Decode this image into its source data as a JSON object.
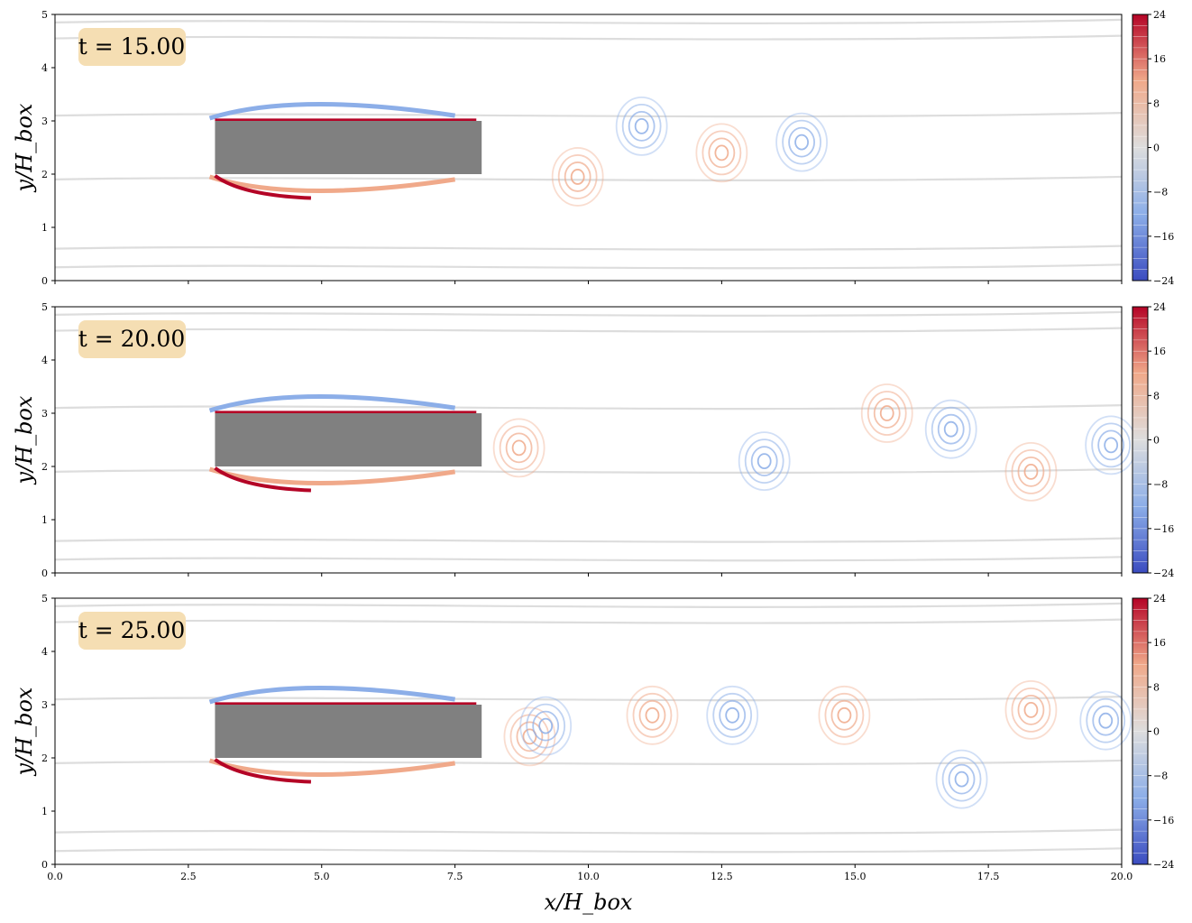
{
  "chart_data": {
    "type": "contour",
    "xlabel": "x/H_box",
    "ylabel": "y/H_box",
    "xlim": [
      0,
      20
    ],
    "ylim": [
      0,
      5
    ],
    "x_ticks": [
      "0.0",
      "2.5",
      "5.0",
      "7.5",
      "10.0",
      "12.5",
      "15.0",
      "17.5",
      "20.0"
    ],
    "y_ticks": [
      "0",
      "1",
      "2",
      "3",
      "4",
      "5"
    ],
    "colorbar": {
      "ticks": [
        "24",
        "16",
        "8",
        "0",
        "−8",
        "−16",
        "−24"
      ],
      "range": [
        -24,
        24
      ],
      "colormap": "coolwarm"
    },
    "obstacle": {
      "x": [
        3,
        8
      ],
      "y": [
        2,
        3
      ],
      "color": "#808080"
    },
    "panels": [
      {
        "time_label": "t = 15.00"
      },
      {
        "time_label": "t = 20.00"
      },
      {
        "time_label": "t = 25.00"
      }
    ]
  },
  "colors": {
    "negative_strong": "#3b4cc0",
    "negative_mid": "#8caee8",
    "neutral": "#dddddd",
    "positive_mid": "#f0a98a",
    "positive_strong": "#b40426",
    "time_box_fill": "#f5deb3",
    "obstacle": "#808080"
  }
}
